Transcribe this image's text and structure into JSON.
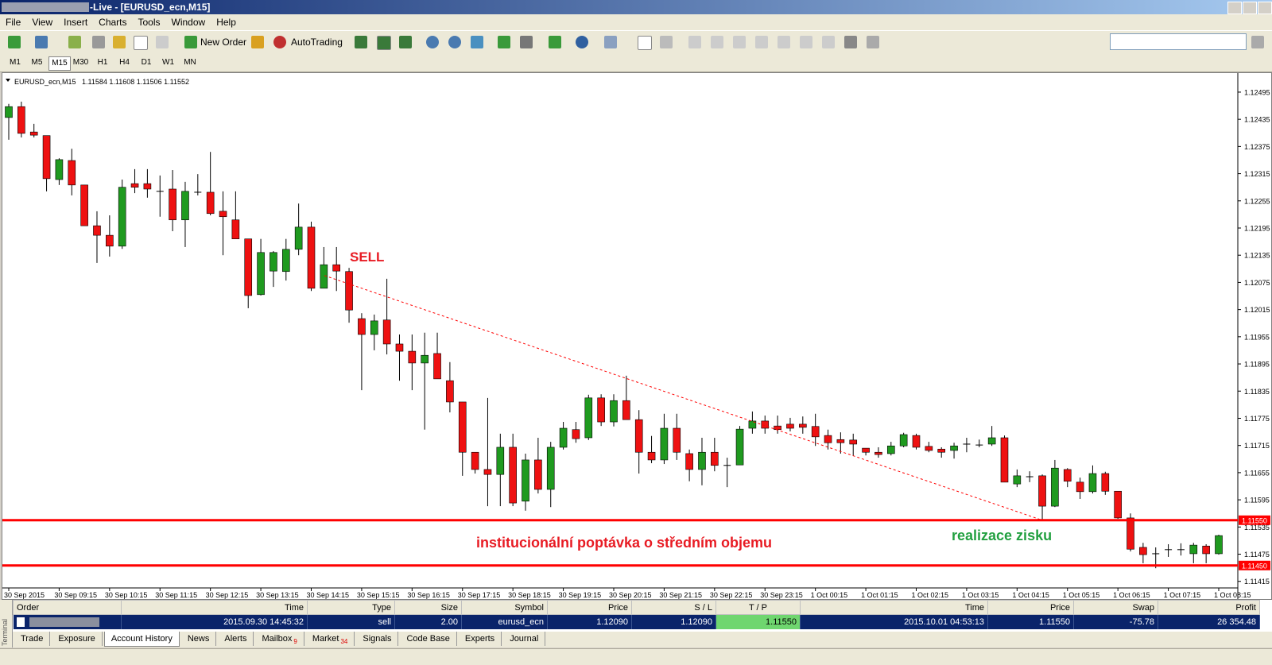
{
  "window": {
    "title": "-Live - [EURUSD_ecn,M15]",
    "menu": [
      "File",
      "View",
      "Insert",
      "Charts",
      "Tools",
      "Window",
      "Help"
    ],
    "toolbar": {
      "new_order": "New Order",
      "auto_trading": "AutoTrading"
    },
    "timeframes": [
      "M1",
      "M5",
      "M15",
      "M30",
      "H1",
      "H4",
      "D1",
      "W1",
      "MN"
    ]
  },
  "chart_data": {
    "type": "candlestick",
    "symbol": "EURUSD_ecn,M15",
    "quote": "1.11584 1.11608 1.11506 1.11552",
    "up_color": "#1f9a1f",
    "down_color": "#ee1111",
    "categories": [
      "30 Sep 2015",
      null,
      null,
      null,
      "30 Sep 09:15",
      null,
      null,
      null,
      "30 Sep 10:15",
      null,
      null,
      null,
      "30 Sep 11:15",
      null,
      null,
      null,
      "30 Sep 12:15",
      null,
      null,
      null,
      "30 Sep 13:15",
      null,
      null,
      null,
      "30 Sep 14:15",
      null,
      null,
      null,
      "30 Sep 15:15",
      null,
      null,
      null,
      "30 Sep 16:15",
      null,
      null,
      null,
      "30 Sep 17:15",
      null,
      null,
      null,
      "30 Sep 18:15",
      null,
      null,
      null,
      "30 Sep 19:15",
      null,
      null,
      null,
      "30 Sep 20:15",
      null,
      null,
      null,
      "30 Sep 21:15",
      null,
      null,
      null,
      "30 Sep 22:15",
      null,
      null,
      null,
      "30 Sep 23:15",
      null,
      null,
      null,
      "1 Oct 00:15",
      null,
      null,
      null,
      "1 Oct 01:15",
      null,
      null,
      null,
      "1 Oct 02:15",
      null,
      null,
      null,
      "1 Oct 03:15",
      null,
      null,
      null,
      "1 Oct 04:15",
      null,
      null,
      null,
      "1 Oct 05:15",
      null,
      null,
      null,
      "1 Oct 06:15",
      null,
      null,
      null,
      "1 Oct 07:15",
      null,
      null,
      null,
      "1 Oct 08:15"
    ],
    "open": [
      1.12439,
      1.12463,
      1.12407,
      1.12399,
      1.12302,
      1.12344,
      1.1229,
      1.122,
      1.12179,
      1.12155,
      1.12293,
      1.12293,
      1.12276,
      1.12281,
      1.12213,
      1.12274,
      1.12274,
      1.12232,
      1.12213,
      1.12171,
      1.12048,
      1.121,
      1.12099,
      1.12148,
      1.12197,
      1.12062,
      1.12114,
      1.12099,
      1.11995,
      1.1196,
      1.11992,
      1.11939,
      1.11923,
      1.11897,
      1.11918,
      1.11858,
      1.11811,
      1.117,
      1.11662,
      1.11651,
      1.11711,
      1.11592,
      1.11683,
      1.11618,
      1.11711,
      1.1175,
      1.11732,
      1.1182,
      1.11767,
      1.11814,
      1.11772,
      1.117,
      1.11683,
      1.11753,
      1.11697,
      1.11662,
      1.117,
      1.11671,
      1.11672,
      1.11753,
      1.11769,
      1.11758,
      1.11762,
      1.11762,
      1.11757,
      1.11737,
      1.11728,
      1.11727,
      1.11709,
      1.117,
      1.11697,
      1.11714,
      1.11737,
      1.11713,
      1.11707,
      1.11704,
      1.11718,
      1.11716,
      1.11718,
      1.11732,
      1.1163,
      1.11646,
      1.11648,
      1.11581,
      1.11662,
      1.11634,
      1.11613,
      1.11653,
      1.11614,
      1.11555,
      1.1149,
      1.11476,
      1.11485,
      1.11485,
      1.11476,
      1.11493,
      1.11476
    ],
    "high": [
      1.12469,
      1.12474,
      1.12425,
      1.12399,
      1.12349,
      1.1237,
      1.1229,
      1.12232,
      1.12223,
      1.12302,
      1.12325,
      1.12325,
      1.12311,
      1.12323,
      1.12297,
      1.12314,
      1.12363,
      1.12276,
      1.12276,
      1.12171,
      1.12171,
      1.12144,
      1.12171,
      1.12249,
      1.12209,
      1.12153,
      1.12153,
      1.12107,
      1.12007,
      1.12004,
      1.12083,
      1.1196,
      1.1196,
      1.11964,
      1.11964,
      1.11899,
      1.11811,
      1.117,
      1.1182,
      1.11741,
      1.11741,
      1.11697,
      1.11732,
      1.11723,
      1.11767,
      1.11767,
      1.11827,
      1.11828,
      1.11828,
      1.11869,
      1.11793,
      1.11736,
      1.11785,
      1.11785,
      1.11706,
      1.11732,
      1.11732,
      1.11688,
      1.11758,
      1.1179,
      1.11781,
      1.11781,
      1.11776,
      1.11779,
      1.11785,
      1.1175,
      1.11744,
      1.11741,
      1.11709,
      1.11711,
      1.11723,
      1.11743,
      1.11741,
      1.11723,
      1.11711,
      1.11721,
      1.11732,
      1.11728,
      1.11758,
      1.11737,
      1.11662,
      1.11658,
      1.11651,
      1.11683,
      1.11665,
      1.11644,
      1.11671,
      1.11657,
      1.11614,
      1.11565,
      1.115,
      1.1149,
      1.11497,
      1.11499,
      1.115,
      1.11497,
      1.11518
    ],
    "low": [
      1.1239,
      1.12395,
      1.12395,
      1.12276,
      1.1229,
      1.12267,
      1.122,
      1.12118,
      1.12132,
      1.12149,
      1.12272,
      1.12262,
      1.1222,
      1.12188,
      1.12153,
      1.12267,
      1.12223,
      1.12135,
      1.12171,
      1.12018,
      1.12046,
      1.12065,
      1.12079,
      1.12135,
      1.12056,
      1.12062,
      1.12056,
      1.11986,
      1.11837,
      1.11925,
      1.11916,
      1.11858,
      1.11837,
      1.1175,
      1.11862,
      1.11788,
      1.11648,
      1.11653,
      1.11581,
      1.11581,
      1.11581,
      1.11571,
      1.11609,
      1.11579,
      1.11706,
      1.11721,
      1.11727,
      1.11758,
      1.11757,
      1.11772,
      1.11653,
      1.11676,
      1.11674,
      1.11683,
      1.11636,
      1.11627,
      1.11658,
      1.11623,
      1.11672,
      1.11741,
      1.11741,
      1.11741,
      1.11746,
      1.11741,
      1.11714,
      1.11706,
      1.11697,
      1.11692,
      1.11693,
      1.11688,
      1.11693,
      1.11711,
      1.11706,
      1.117,
      1.11688,
      1.11686,
      1.117,
      1.11711,
      1.11714,
      1.11634,
      1.11623,
      1.11634,
      1.11548,
      1.11579,
      1.11623,
      1.11597,
      1.11609,
      1.11606,
      1.11553,
      1.11481,
      1.11455,
      1.11444,
      1.11469,
      1.11472,
      1.11455,
      1.11455,
      1.11474
    ],
    "close": [
      1.12463,
      1.12404,
      1.124,
      1.12304,
      1.12346,
      1.1229,
      1.122,
      1.12179,
      1.12155,
      1.12285,
      1.12285,
      1.12281,
      1.12276,
      1.12213,
      1.12276,
      1.12274,
      1.12227,
      1.1222,
      1.12171,
      1.12046,
      1.12141,
      1.12141,
      1.12148,
      1.12197,
      1.12062,
      1.12114,
      1.121,
      1.12014,
      1.1196,
      1.1199,
      1.11939,
      1.11923,
      1.11897,
      1.11914,
      1.11862,
      1.11811,
      1.117,
      1.11662,
      1.11651,
      1.11711,
      1.11588,
      1.11683,
      1.11618,
      1.11711,
      1.11753,
      1.1173,
      1.1182,
      1.11767,
      1.11814,
      1.11772,
      1.117,
      1.11683,
      1.11753,
      1.117,
      1.11662,
      1.117,
      1.11671,
      1.11671,
      1.11751,
      1.11769,
      1.11753,
      1.1175,
      1.11753,
      1.11755,
      1.11734,
      1.11721,
      1.11721,
      1.11718,
      1.117,
      1.11695,
      1.11714,
      1.11739,
      1.11711,
      1.11704,
      1.117,
      1.11714,
      1.11718,
      1.11716,
      1.11732,
      1.11634,
      1.11648,
      1.11646,
      1.11581,
      1.11665,
      1.11636,
      1.11613,
      1.11653,
      1.11614,
      1.11555,
      1.11486,
      1.11474,
      1.11476,
      1.11485,
      1.11485,
      1.11495,
      1.11476,
      1.11516
    ],
    "ylim": [
      1.11404,
      1.1253
    ],
    "yticks": [
      1.12495,
      1.12435,
      1.12375,
      1.12315,
      1.12255,
      1.12195,
      1.12135,
      1.12075,
      1.12015,
      1.11955,
      1.11895,
      1.11835,
      1.11775,
      1.11715,
      1.11655,
      1.11595,
      1.11535,
      1.11475,
      1.11415
    ],
    "levels": [
      {
        "value": 1.1155,
        "label": "1.11550"
      },
      {
        "value": 1.1145,
        "label": "1.11450"
      }
    ],
    "annotations": {
      "sell": "SELL",
      "demand": "institucionální poptávka o středním objemu",
      "profit": "realizace zisku"
    }
  },
  "terminal": {
    "columns": [
      "Order",
      "Time",
      "Type",
      "Size",
      "Symbol",
      "Price",
      "S / L",
      "T / P",
      "Time",
      "Price",
      "Swap",
      "Profit"
    ],
    "rows": [
      {
        "time": "2015.09.30 14:45:32",
        "type": "sell",
        "size": "2.00",
        "symbol": "eurusd_ecn",
        "price": "1.12090",
        "sl": "1.12090",
        "tp": "1.11550",
        "close_time": "2015.10.01 04:53:13",
        "close_price": "1.11550",
        "swap": "-75.78",
        "profit": "26 354.48"
      }
    ],
    "tabs": [
      {
        "label": "Trade"
      },
      {
        "label": "Exposure"
      },
      {
        "label": "Account History"
      },
      {
        "label": "News"
      },
      {
        "label": "Alerts"
      },
      {
        "label": "Mailbox",
        "badge": "9"
      },
      {
        "label": "Market",
        "badge": "34"
      },
      {
        "label": "Signals"
      },
      {
        "label": "Code Base"
      },
      {
        "label": "Experts"
      },
      {
        "label": "Journal"
      }
    ],
    "side_label": "Terminal"
  }
}
